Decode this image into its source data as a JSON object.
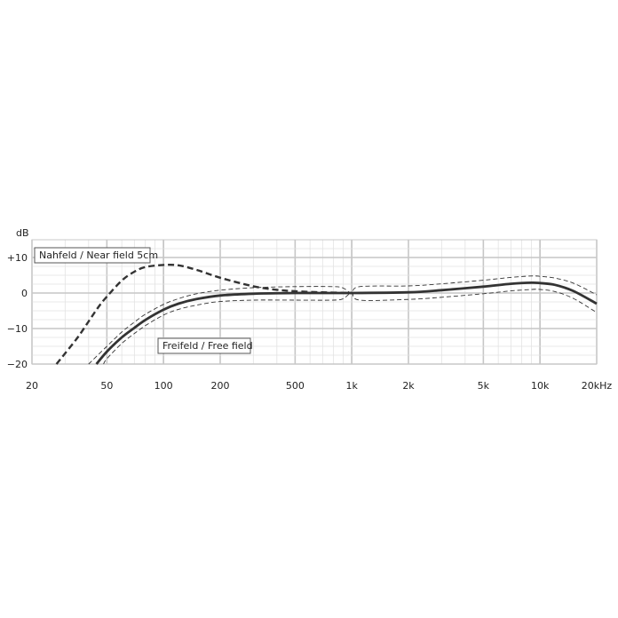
{
  "chart_data": {
    "type": "line",
    "title": "",
    "xlabel": "",
    "ylabel": "dB",
    "x_scale": "log",
    "xlim": [
      20,
      20000
    ],
    "ylim": [
      -20,
      15
    ],
    "grid": true,
    "x_ticks": [
      {
        "value": 20,
        "label": "20"
      },
      {
        "value": 50,
        "label": "50"
      },
      {
        "value": 100,
        "label": "100"
      },
      {
        "value": 200,
        "label": "200"
      },
      {
        "value": 500,
        "label": "500"
      },
      {
        "value": 1000,
        "label": "1k"
      },
      {
        "value": 2000,
        "label": "2k"
      },
      {
        "value": 5000,
        "label": "5k"
      },
      {
        "value": 10000,
        "label": "10k"
      },
      {
        "value": 20000,
        "label": "20kHz"
      }
    ],
    "y_ticks": [
      {
        "value": 10,
        "label": "+10"
      },
      {
        "value": 0,
        "label": "0"
      },
      {
        "value": -10,
        "label": "−10"
      },
      {
        "value": -20,
        "label": "−20"
      }
    ],
    "annotations": [
      {
        "text": "Nahfeld / Near field  5cm"
      },
      {
        "text": "Freifeld / Free  field"
      }
    ],
    "series": [
      {
        "role": "near-field",
        "style": "dashed-bold",
        "color": "#333333",
        "x": [
          27,
          30,
          35,
          40,
          45,
          50,
          60,
          70,
          80,
          100,
          120,
          150,
          200,
          300,
          400,
          500,
          700,
          1000
        ],
        "y": [
          -20,
          -17,
          -12.5,
          -8,
          -4,
          -1,
          3.5,
          6,
          7.3,
          7.9,
          7.8,
          6.5,
          4.3,
          1.9,
          0.9,
          0.5,
          0.2,
          0
        ]
      },
      {
        "role": "free-field",
        "style": "solid-bold",
        "color": "#333333",
        "x": [
          44,
          50,
          60,
          70,
          80,
          100,
          120,
          150,
          200,
          300,
          500,
          700,
          1000,
          2000,
          3000,
          5000,
          7000,
          9000,
          10000,
          12000,
          15000,
          20000
        ],
        "y": [
          -20,
          -16.5,
          -12.5,
          -9.8,
          -7.6,
          -4.7,
          -3,
          -1.7,
          -0.7,
          -0.2,
          0,
          0,
          0,
          0.2,
          0.8,
          1.8,
          2.6,
          2.9,
          2.8,
          2.3,
          0.6,
          -3
        ]
      },
      {
        "role": "free-field-upper-tolerance",
        "style": "dashed-thin",
        "color": "#333333",
        "x": [
          40,
          50,
          60,
          70,
          80,
          100,
          120,
          150,
          200,
          300,
          500,
          800,
          900,
          1000,
          1100,
          2000,
          3000,
          5000,
          7000,
          9000,
          10000,
          12000,
          15000,
          20000
        ],
        "y": [
          -20,
          -15,
          -11,
          -8.2,
          -6,
          -3.2,
          -1.6,
          -0.2,
          0.8,
          1.5,
          1.8,
          1.8,
          1.4,
          0,
          1.8,
          2,
          2.6,
          3.6,
          4.4,
          4.8,
          4.7,
          4.2,
          2.8,
          -0.5
        ]
      },
      {
        "role": "free-field-lower-tolerance",
        "style": "dashed-thin",
        "color": "#333333",
        "x": [
          48,
          50,
          60,
          70,
          80,
          100,
          120,
          150,
          200,
          300,
          500,
          800,
          900,
          1000,
          1100,
          2000,
          3000,
          5000,
          7000,
          9000,
          10000,
          12000,
          15000,
          20000
        ],
        "y": [
          -20,
          -18.5,
          -14.2,
          -11.4,
          -9.2,
          -6.2,
          -4.6,
          -3.4,
          -2.4,
          -2,
          -2,
          -2,
          -1.6,
          0,
          -2,
          -1.8,
          -1.2,
          -0.2,
          0.6,
          1,
          1,
          0.4,
          -1.5,
          -5.5
        ]
      }
    ]
  }
}
